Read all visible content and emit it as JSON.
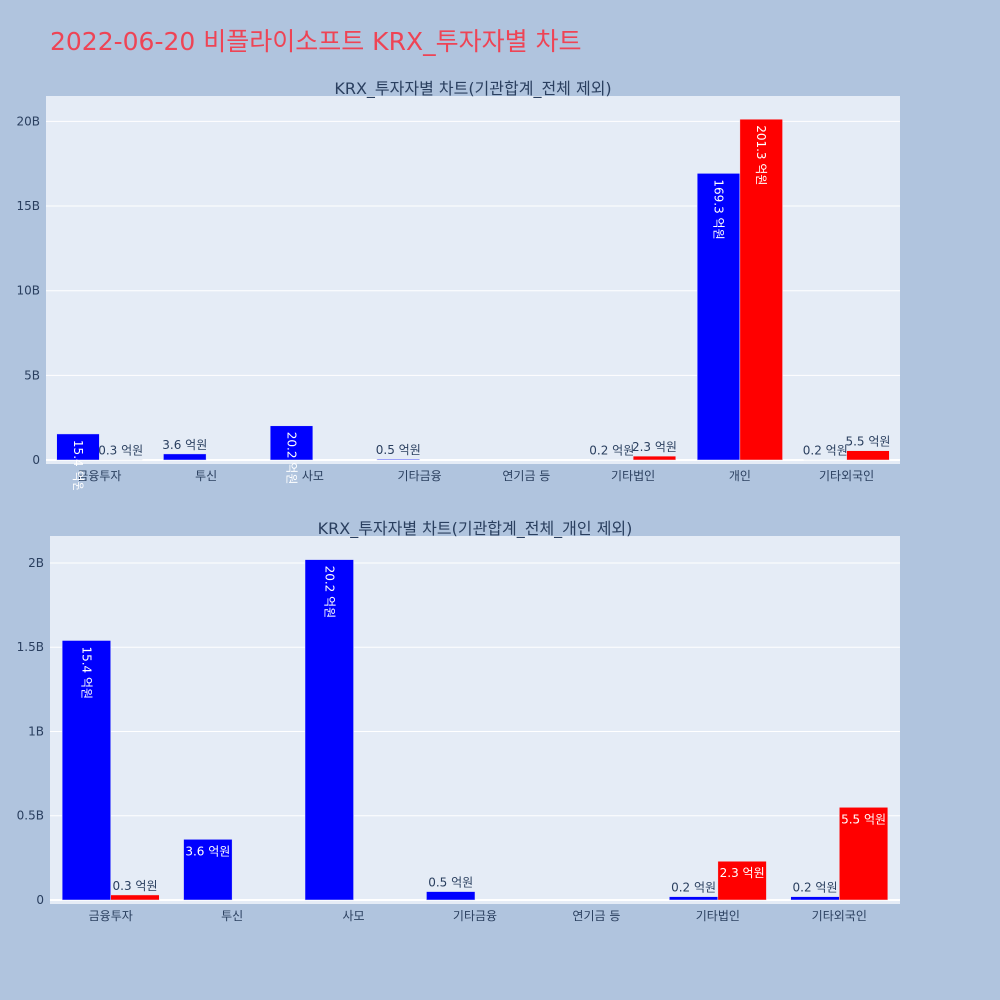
{
  "title": "2022-06-20 비플라이소프트 KRX_투자자별 차트",
  "chart_data": [
    {
      "type": "bar",
      "title": "KRX_투자자별 차트(기관합계_전체 제외)",
      "categories": [
        "금융투자",
        "투신",
        "사모",
        "기타금융",
        "연기금 등",
        "기타법인",
        "개인",
        "기타외국인"
      ],
      "series": [
        {
          "color": "#0000ff",
          "values": [
            1.54,
            0.36,
            2.02,
            0.05,
            0,
            0.02,
            16.93,
            0.02
          ],
          "labels": [
            "15.4 억원",
            "3.6 억원",
            "20.2 억원",
            "0.5 억원",
            "",
            "0.2 억원",
            "169.3 억원",
            "0.2 억원"
          ]
        },
        {
          "color": "#ff0000",
          "values": [
            0.03,
            0,
            0,
            0,
            0,
            0.23,
            20.13,
            0.55
          ],
          "labels": [
            "0.3 억원",
            "",
            "",
            "",
            "",
            "2.3 억원",
            "201.3 억원",
            "5.5 억원"
          ]
        }
      ],
      "yticks": [
        0,
        5,
        10,
        15,
        20
      ],
      "ytick_labels": [
        "0",
        "5B",
        "10B",
        "15B",
        "20B"
      ],
      "ylim": [
        0,
        21.5
      ],
      "grid": true
    },
    {
      "type": "bar",
      "title": "KRX_투자자별 차트(기관합계_전체_개인 제외)",
      "categories": [
        "금융투자",
        "투신",
        "사모",
        "기타금융",
        "연기금 등",
        "기타법인",
        "기타외국인"
      ],
      "series": [
        {
          "color": "#0000ff",
          "values": [
            1.54,
            0.36,
            2.02,
            0.05,
            0,
            0.02,
            0.02
          ],
          "labels": [
            "15.4 억원",
            "3.6 억원",
            "20.2 억원",
            "0.5 억원",
            "",
            "0.2 억원",
            "0.2 억원"
          ]
        },
        {
          "color": "#ff0000",
          "values": [
            0.03,
            0,
            0,
            0,
            0,
            0.23,
            0.55
          ],
          "labels": [
            "0.3 억원",
            "",
            "",
            "",
            "",
            "2.3 억원",
            "5.5 억원"
          ]
        }
      ],
      "yticks": [
        0,
        0.5,
        1,
        1.5,
        2
      ],
      "ytick_labels": [
        "0",
        "0.5B",
        "1B",
        "1.5B",
        "2B"
      ],
      "ylim": [
        0,
        2.16
      ],
      "grid": true
    }
  ]
}
